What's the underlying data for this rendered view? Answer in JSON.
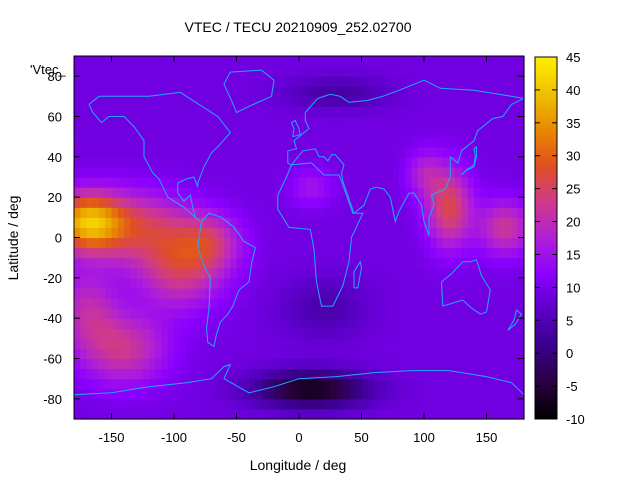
{
  "chart_data": {
    "type": "heatmap",
    "title": "VTEC / TECU 20210909_252.02700",
    "xlabel": "Longitude / deg",
    "ylabel": "Latitude / deg",
    "key_label": "'Vtec_",
    "xlim": [
      -180,
      180
    ],
    "ylim": [
      -90,
      90
    ],
    "x_ticks": [
      -150,
      -100,
      -50,
      0,
      50,
      100,
      150
    ],
    "y_ticks": [
      -80,
      -60,
      -40,
      -20,
      0,
      20,
      40,
      60,
      80
    ],
    "colorbar": {
      "range": [
        -10,
        45
      ],
      "ticks": [
        -10,
        -5,
        0,
        5,
        10,
        15,
        20,
        25,
        30,
        35,
        40,
        45
      ],
      "palette": [
        "#000000",
        "#2a0040",
        "#3a008a",
        "#5b00c8",
        "#8c00ff",
        "#b020d6",
        "#d03a8a",
        "#e05020",
        "#e88a00",
        "#f0c000",
        "#ffee00"
      ]
    },
    "grid": false,
    "colors": {
      "coastline": "#1fa8ff",
      "background": "#ffffff"
    },
    "features": [
      {
        "name": "equatorial anomaly pacific",
        "lon": -170,
        "lat": 10,
        "value": 44
      },
      {
        "name": "equatorial anomaly asia",
        "lon": 120,
        "lat": 15,
        "value": 27
      },
      {
        "name": "south pacific high",
        "lon": -140,
        "lat": -55,
        "value": 22
      },
      {
        "name": "antarctic low",
        "lon": 10,
        "lat": -75,
        "value": -8
      }
    ]
  }
}
